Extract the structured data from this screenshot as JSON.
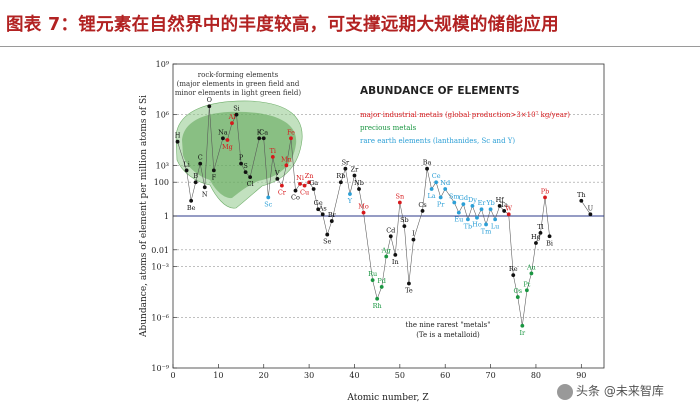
{
  "page": {
    "title": "图表 7：锂元素在自然界中的丰度较高，可支撑远期大规模的储能应用",
    "watermark": "头条 @未来智库"
  },
  "chart_data": {
    "type": "scatter",
    "title": "ABUNDANCE OF ELEMENTS",
    "xlabel": "Atomic number, Z",
    "ylabel": "Abundance, atoms of element per million atoms of Si",
    "xlim": [
      0,
      95
    ],
    "ylim_log10": [
      -9,
      9
    ],
    "x_ticks": [
      0,
      10,
      20,
      30,
      40,
      50,
      60,
      70,
      80,
      90
    ],
    "y_ticks": [
      {
        "exp": 9,
        "label": "10⁹"
      },
      {
        "exp": 6,
        "label": "10⁶"
      },
      {
        "exp": 3,
        "label": "10³"
      },
      {
        "exp": 2,
        "label": "100"
      },
      {
        "exp": 0,
        "label": "1"
      },
      {
        "exp": -2,
        "label": "0.01"
      },
      {
        "exp": -3,
        "label": "10⁻³"
      },
      {
        "exp": -6,
        "label": "10⁻⁶"
      },
      {
        "exp": -9,
        "label": "10⁻⁹"
      }
    ],
    "legend": [
      {
        "label": "major industrial metals (global production>3×10⁷ kg/year)",
        "color": "#d7191c"
      },
      {
        "label": "precious metals",
        "color": "#1a9641"
      },
      {
        "label": "rare earth elements (lanthanides, Sc and Y)",
        "color": "#2c9fd6"
      }
    ],
    "rock_forming_region": {
      "note": "rock-forming elements",
      "sub_note": "(major elements in green field and minor elements in light green field)"
    },
    "rarest_note": {
      "line1": "the nine rarest \"metals\"",
      "line2": "(Te is a metalloid)"
    },
    "category_colors": {
      "other": "#111111",
      "major": "#d7191c",
      "precious": "#1a9641",
      "ree": "#2c9fd6"
    },
    "points": [
      {
        "z": 1,
        "sym": "H",
        "log": 4.4,
        "cat": "other"
      },
      {
        "z": 3,
        "sym": "Li",
        "log": 2.7,
        "cat": "other"
      },
      {
        "z": 4,
        "sym": "Be",
        "log": 0.9,
        "cat": "other"
      },
      {
        "z": 5,
        "sym": "B",
        "log": 2.0,
        "cat": "other"
      },
      {
        "z": 6,
        "sym": "C",
        "log": 3.1,
        "cat": "other"
      },
      {
        "z": 7,
        "sym": "N",
        "log": 1.7,
        "cat": "other"
      },
      {
        "z": 8,
        "sym": "O",
        "log": 6.5,
        "cat": "other"
      },
      {
        "z": 9,
        "sym": "F",
        "log": 2.7,
        "cat": "other"
      },
      {
        "z": 11,
        "sym": "Na",
        "log": 4.6,
        "cat": "other"
      },
      {
        "z": 12,
        "sym": "Mg",
        "log": 4.5,
        "cat": "major"
      },
      {
        "z": 13,
        "sym": "Al",
        "log": 5.5,
        "cat": "major"
      },
      {
        "z": 14,
        "sym": "Si",
        "log": 6.0,
        "cat": "other"
      },
      {
        "z": 15,
        "sym": "P",
        "log": 3.1,
        "cat": "other"
      },
      {
        "z": 16,
        "sym": "S",
        "log": 2.6,
        "cat": "other"
      },
      {
        "z": 17,
        "sym": "Cl",
        "log": 2.3,
        "cat": "other"
      },
      {
        "z": 19,
        "sym": "K",
        "log": 4.6,
        "cat": "other"
      },
      {
        "z": 20,
        "sym": "Ca",
        "log": 4.6,
        "cat": "other"
      },
      {
        "z": 21,
        "sym": "Sc",
        "log": 1.1,
        "cat": "ree"
      },
      {
        "z": 22,
        "sym": "Ti",
        "log": 3.5,
        "cat": "major"
      },
      {
        "z": 23,
        "sym": "V",
        "log": 2.2,
        "cat": "other"
      },
      {
        "z": 24,
        "sym": "Cr",
        "log": 1.8,
        "cat": "major"
      },
      {
        "z": 25,
        "sym": "Mn",
        "log": 3.0,
        "cat": "major"
      },
      {
        "z": 26,
        "sym": "Fe",
        "log": 4.6,
        "cat": "major"
      },
      {
        "z": 27,
        "sym": "Co",
        "log": 1.5,
        "cat": "other"
      },
      {
        "z": 28,
        "sym": "Ni",
        "log": 1.9,
        "cat": "major"
      },
      {
        "z": 29,
        "sym": "Cu",
        "log": 1.8,
        "cat": "major"
      },
      {
        "z": 30,
        "sym": "Zn",
        "log": 2.0,
        "cat": "major"
      },
      {
        "z": 31,
        "sym": "Ga",
        "log": 1.6,
        "cat": "other"
      },
      {
        "z": 32,
        "sym": "Ge",
        "log": 0.4,
        "cat": "other"
      },
      {
        "z": 33,
        "sym": "As",
        "log": 0.1,
        "cat": "other"
      },
      {
        "z": 34,
        "sym": "Se",
        "log": -1.1,
        "cat": "other"
      },
      {
        "z": 35,
        "sym": "Br",
        "log": -0.3,
        "cat": "other"
      },
      {
        "z": 37,
        "sym": "Rb",
        "log": 2.0,
        "cat": "other"
      },
      {
        "z": 38,
        "sym": "Sr",
        "log": 2.8,
        "cat": "other"
      },
      {
        "z": 39,
        "sym": "Y",
        "log": 1.3,
        "cat": "ree"
      },
      {
        "z": 40,
        "sym": "Zr",
        "log": 2.4,
        "cat": "other"
      },
      {
        "z": 41,
        "sym": "Nb",
        "log": 1.6,
        "cat": "other"
      },
      {
        "z": 42,
        "sym": "Mo",
        "log": 0.2,
        "cat": "major"
      },
      {
        "z": 44,
        "sym": "Ru",
        "log": -3.8,
        "cat": "precious"
      },
      {
        "z": 45,
        "sym": "Rh",
        "log": -4.9,
        "cat": "precious"
      },
      {
        "z": 46,
        "sym": "Pd",
        "log": -4.2,
        "cat": "precious"
      },
      {
        "z": 47,
        "sym": "Ag",
        "log": -2.4,
        "cat": "precious"
      },
      {
        "z": 48,
        "sym": "Cd",
        "log": -1.2,
        "cat": "other"
      },
      {
        "z": 49,
        "sym": "In",
        "log": -2.3,
        "cat": "other"
      },
      {
        "z": 50,
        "sym": "Sn",
        "log": 0.8,
        "cat": "major"
      },
      {
        "z": 51,
        "sym": "Sb",
        "log": -0.6,
        "cat": "other"
      },
      {
        "z": 52,
        "sym": "Te",
        "log": -4.0,
        "cat": "other"
      },
      {
        "z": 53,
        "sym": "I",
        "log": -1.4,
        "cat": "other"
      },
      {
        "z": 55,
        "sym": "Cs",
        "log": 0.3,
        "cat": "other"
      },
      {
        "z": 56,
        "sym": "Ba",
        "log": 2.8,
        "cat": "other"
      },
      {
        "z": 57,
        "sym": "La",
        "log": 1.6,
        "cat": "ree"
      },
      {
        "z": 58,
        "sym": "Ce",
        "log": 2.0,
        "cat": "ree"
      },
      {
        "z": 59,
        "sym": "Pr",
        "log": 1.1,
        "cat": "ree"
      },
      {
        "z": 60,
        "sym": "Nd",
        "log": 1.6,
        "cat": "ree"
      },
      {
        "z": 62,
        "sym": "Sm",
        "log": 0.8,
        "cat": "ree"
      },
      {
        "z": 63,
        "sym": "Eu",
        "log": 0.2,
        "cat": "ree"
      },
      {
        "z": 64,
        "sym": "Gd",
        "log": 0.7,
        "cat": "ree"
      },
      {
        "z": 65,
        "sym": "Tb",
        "log": -0.2,
        "cat": "ree"
      },
      {
        "z": 66,
        "sym": "Dy",
        "log": 0.6,
        "cat": "ree"
      },
      {
        "z": 67,
        "sym": "Ho",
        "log": -0.1,
        "cat": "ree"
      },
      {
        "z": 68,
        "sym": "Er",
        "log": 0.4,
        "cat": "ree"
      },
      {
        "z": 69,
        "sym": "Tm",
        "log": -0.5,
        "cat": "ree"
      },
      {
        "z": 70,
        "sym": "Yb",
        "log": 0.4,
        "cat": "ree"
      },
      {
        "z": 71,
        "sym": "Lu",
        "log": -0.2,
        "cat": "ree"
      },
      {
        "z": 72,
        "sym": "Hf",
        "log": 0.6,
        "cat": "other"
      },
      {
        "z": 73,
        "sym": "Ta",
        "log": 0.3,
        "cat": "other"
      },
      {
        "z": 74,
        "sym": "W",
        "log": 0.1,
        "cat": "major"
      },
      {
        "z": 75,
        "sym": "Re",
        "log": -3.5,
        "cat": "other"
      },
      {
        "z": 76,
        "sym": "Os",
        "log": -4.8,
        "cat": "precious"
      },
      {
        "z": 77,
        "sym": "Ir",
        "log": -6.5,
        "cat": "precious"
      },
      {
        "z": 78,
        "sym": "Pt",
        "log": -4.4,
        "cat": "precious"
      },
      {
        "z": 79,
        "sym": "Au",
        "log": -3.4,
        "cat": "precious"
      },
      {
        "z": 80,
        "sym": "Hg",
        "log": -1.6,
        "cat": "other"
      },
      {
        "z": 81,
        "sym": "Tl",
        "log": -1.0,
        "cat": "other"
      },
      {
        "z": 82,
        "sym": "Pb",
        "log": 1.1,
        "cat": "major"
      },
      {
        "z": 83,
        "sym": "Bi",
        "log": -1.2,
        "cat": "other"
      },
      {
        "z": 90,
        "sym": "Th",
        "log": 0.9,
        "cat": "other"
      },
      {
        "z": 92,
        "sym": "U",
        "log": 0.1,
        "cat": "other"
      }
    ]
  }
}
